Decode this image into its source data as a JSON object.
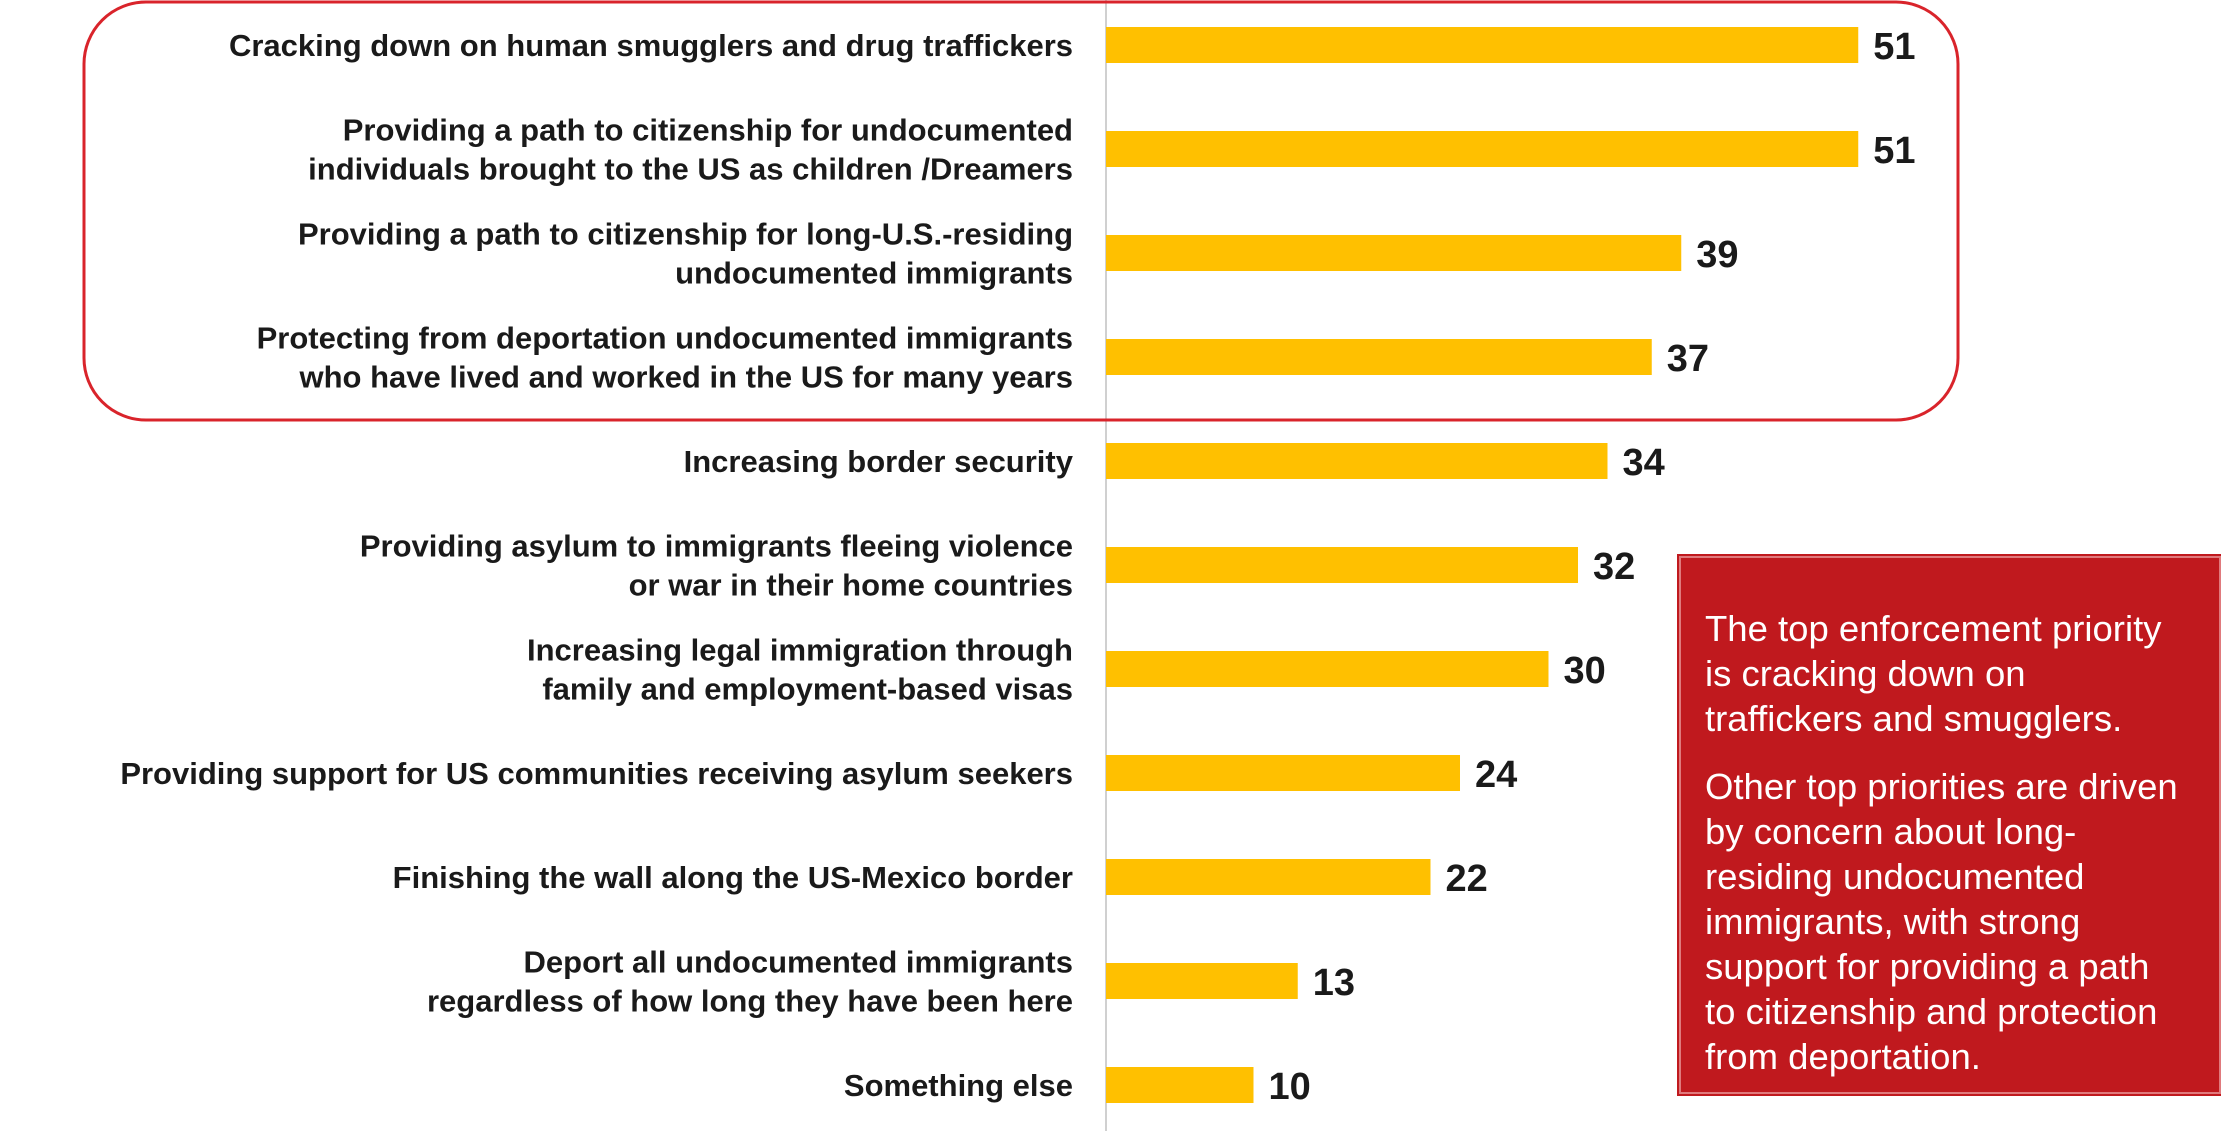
{
  "chart_data": {
    "type": "bar",
    "orientation": "horizontal",
    "categories": [
      [
        "Cracking down on human smugglers and drug traffickers"
      ],
      [
        "Providing a path to citizenship for undocumented",
        "individuals brought to the US as children /Dreamers"
      ],
      [
        "Providing a path to citizenship for long-U.S.-residing",
        "undocumented immigrants"
      ],
      [
        "Protecting from deportation undocumented immigrants",
        "who have lived and worked in the US for many years"
      ],
      [
        "Increasing border security"
      ],
      [
        "Providing asylum to immigrants fleeing violence",
        "or war in their home countries"
      ],
      [
        "Increasing legal immigration through",
        "family and employment-based visas"
      ],
      [
        "Providing support for US communities receiving asylum seekers"
      ],
      [
        "Finishing the wall along the US-Mexico border"
      ],
      [
        "Deport all undocumented immigrants",
        "regardless of how long they have been here"
      ],
      [
        "Something else"
      ]
    ],
    "values": [
      51,
      51,
      39,
      37,
      34,
      32,
      30,
      24,
      22,
      13,
      10
    ],
    "xlim": [
      0,
      60
    ],
    "bar_color": "#ffc000",
    "highlight_color": "#d9242b",
    "highlighted_count": 4,
    "grid": false
  },
  "callout": {
    "paragraphs": [
      "The top enforcement priority is cracking down on traffickers and smugglers.",
      "Other top priorities are driven by concern about long-residing undocumented immigrants, with strong support for providing a path to citizenship and protection from deportation."
    ],
    "background": "#c0191e"
  }
}
